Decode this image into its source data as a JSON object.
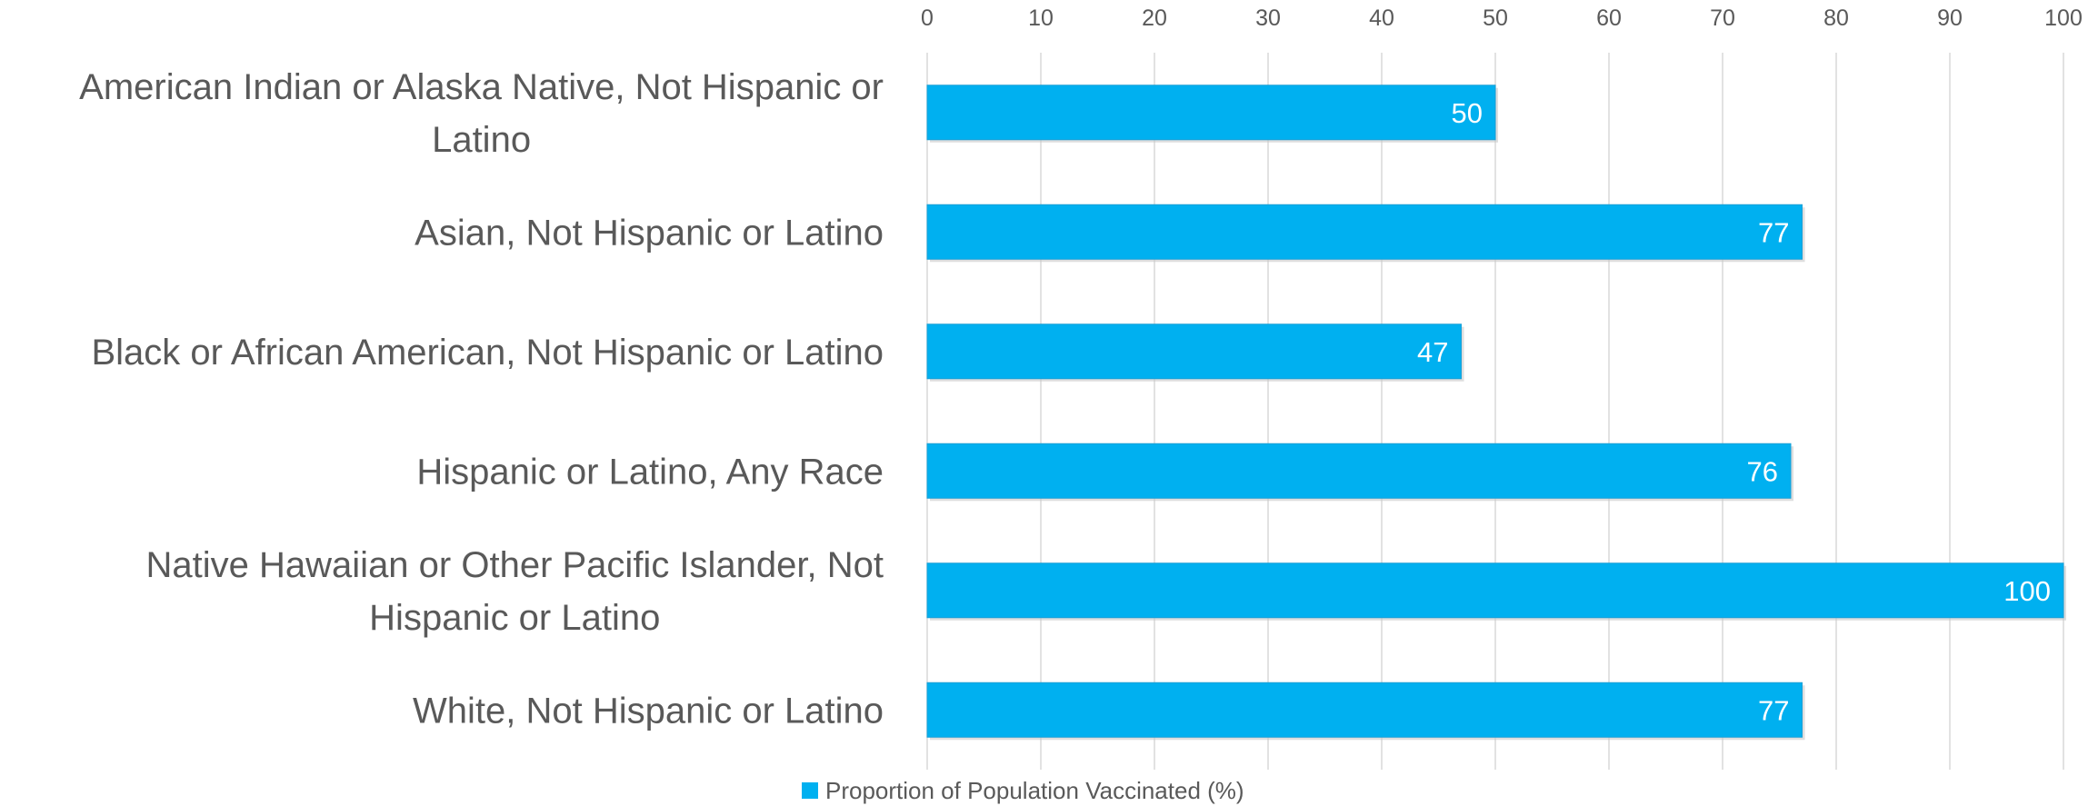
{
  "chart_data": {
    "type": "bar",
    "orientation": "horizontal",
    "categories": [
      [
        "American Indian or Alaska Native, Not Hispanic or",
        "Latino"
      ],
      [
        "Asian, Not Hispanic or Latino"
      ],
      [
        "Black or African American, Not Hispanic or Latino"
      ],
      [
        "Hispanic or Latino, Any Race"
      ],
      [
        "Native Hawaiian or Other Pacific Islander, Not",
        "Hispanic or Latino"
      ],
      [
        "White, Not Hispanic or Latino"
      ]
    ],
    "series": [
      {
        "name": "Proportion of Population Vaccinated (%)",
        "values": [
          50,
          77,
          47,
          76,
          100,
          77
        ],
        "color": "#00b0f0"
      }
    ],
    "xlim": [
      0,
      100
    ],
    "xticks": [
      0,
      10,
      20,
      30,
      40,
      50,
      60,
      70,
      80,
      90,
      100
    ],
    "xaxis_position": "top",
    "grid": true,
    "data_labels": true,
    "legend": {
      "position": "bottom",
      "label": "Proportion of Population Vaccinated (%)"
    }
  }
}
